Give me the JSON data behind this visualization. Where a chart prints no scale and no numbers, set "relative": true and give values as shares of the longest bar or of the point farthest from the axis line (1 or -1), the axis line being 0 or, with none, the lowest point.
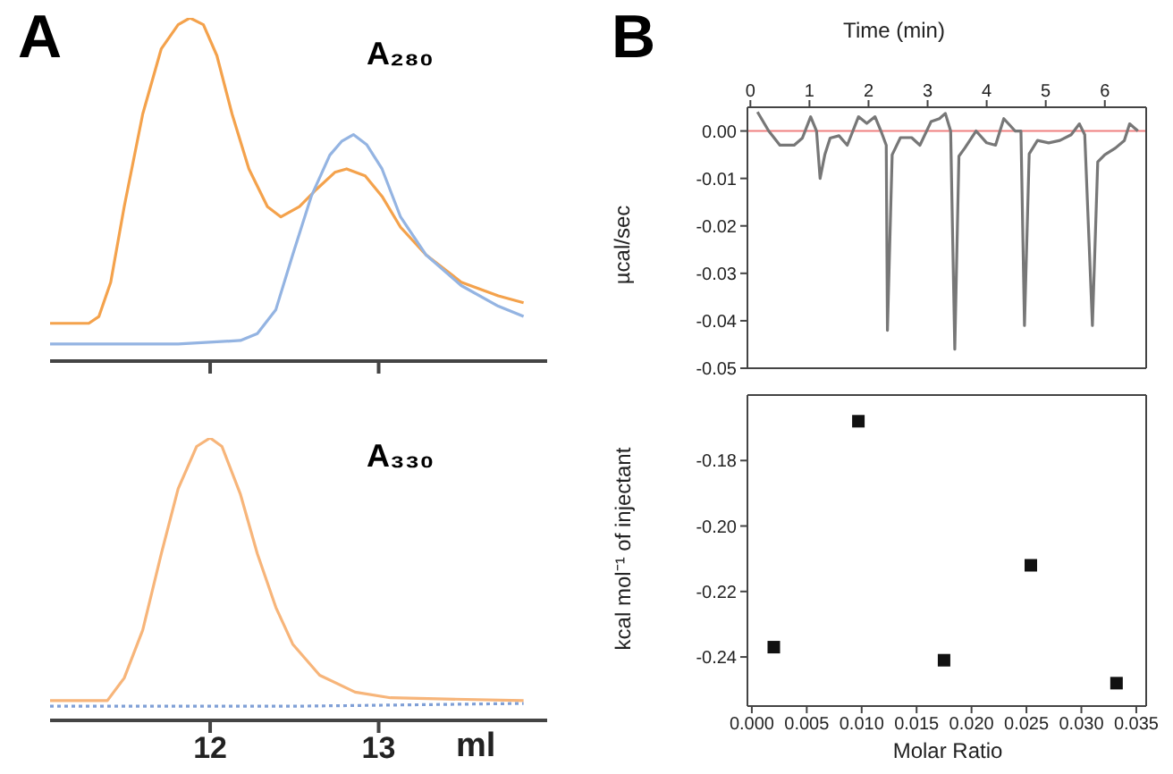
{
  "chart_data": [
    {
      "type": "line",
      "title": "A",
      "annotations": [
        "A₂₈₀"
      ],
      "relative": true,
      "xlim": [
        11.05,
        14.0
      ],
      "xticks": [
        12,
        13
      ],
      "tick_labels": false,
      "series": [
        {
          "color": "#f4a24c",
          "x": [
            11.05,
            11.28,
            11.34,
            11.41,
            11.49,
            11.6,
            11.71,
            11.81,
            11.88,
            11.96,
            12.04,
            12.13,
            12.23,
            12.34,
            12.42,
            12.53,
            12.63,
            12.74,
            12.81,
            12.92,
            13.02,
            13.13,
            13.28,
            13.49,
            13.71,
            13.86
          ],
          "values": [
            0.11,
            0.11,
            0.13,
            0.23,
            0.45,
            0.72,
            0.91,
            0.98,
            1.0,
            0.98,
            0.89,
            0.72,
            0.56,
            0.45,
            0.42,
            0.45,
            0.5,
            0.55,
            0.56,
            0.54,
            0.48,
            0.39,
            0.31,
            0.23,
            0.19,
            0.17
          ]
        },
        {
          "color": "#94b4e2",
          "x": [
            11.05,
            11.81,
            12.18,
            12.28,
            12.39,
            12.49,
            12.6,
            12.71,
            12.78,
            12.85,
            12.93,
            13.02,
            13.13,
            13.28,
            13.49,
            13.71,
            13.86
          ],
          "values": [
            0.05,
            0.05,
            0.06,
            0.08,
            0.15,
            0.31,
            0.48,
            0.6,
            0.64,
            0.66,
            0.63,
            0.56,
            0.42,
            0.31,
            0.22,
            0.16,
            0.13
          ]
        }
      ]
    },
    {
      "type": "line",
      "annotations": [
        "A₃₃₀"
      ],
      "relative": true,
      "xlabel": "ml",
      "xlim": [
        11.05,
        14.0
      ],
      "xticks": [
        12,
        13
      ],
      "tick_labels": "x",
      "series": [
        {
          "color": "#f7b57a",
          "x": [
            11.05,
            11.39,
            11.49,
            11.6,
            11.71,
            11.81,
            11.92,
            12.0,
            12.07,
            12.18,
            12.28,
            12.39,
            12.49,
            12.65,
            12.86,
            13.07,
            13.86
          ],
          "values": [
            0.07,
            0.07,
            0.15,
            0.32,
            0.59,
            0.82,
            0.97,
            1.0,
            0.97,
            0.8,
            0.59,
            0.4,
            0.27,
            0.16,
            0.1,
            0.08,
            0.07
          ]
        },
        {
          "color": "#7f9fd6",
          "line_style": "dotted",
          "x": [
            11.05,
            12.5,
            13.86
          ],
          "values": [
            0.05,
            0.05,
            0.06
          ]
        }
      ]
    },
    {
      "type": "line",
      "title": "B",
      "xlabel": "Time (min)",
      "ylabel": "µcal/sec",
      "xlim": [
        -0.05,
        6.7
      ],
      "xticks": [
        0,
        1,
        2,
        3,
        4,
        5,
        6
      ],
      "ylim": [
        -0.05,
        0.005
      ],
      "yticks": [
        {
          "value": 0,
          "label": "0.00"
        },
        {
          "value": -0.01,
          "label": "-0.01"
        },
        {
          "value": -0.02,
          "label": "-0.02"
        },
        {
          "value": -0.03,
          "label": "-0.03"
        },
        {
          "value": -0.04,
          "label": "-0.04"
        },
        {
          "value": -0.05,
          "label": "-0.05"
        }
      ],
      "ref_lines": [
        {
          "axis": "y",
          "value": 0,
          "color": "#f08080"
        }
      ],
      "series": [
        {
          "color": "#777777",
          "x": [
            0.12,
            0.31,
            0.5,
            0.74,
            0.88,
            1.02,
            1.12,
            1.18,
            1.26,
            1.35,
            1.5,
            1.64,
            1.83,
            1.97,
            2.11,
            2.21,
            2.3,
            2.32,
            2.4,
            2.54,
            2.73,
            2.87,
            3.06,
            3.2,
            3.3,
            3.39,
            3.46,
            3.53,
            3.63,
            3.82,
            4.0,
            4.15,
            4.29,
            4.48,
            4.58,
            4.64,
            4.72,
            4.86,
            5.05,
            5.24,
            5.43,
            5.57,
            5.66,
            5.79,
            5.88,
            6.0,
            6.18,
            6.33,
            6.42,
            6.56
          ],
          "values": [
            0.004,
            0.0,
            -0.003,
            -0.003,
            -0.0015,
            0.003,
            0.0,
            -0.01,
            -0.005,
            -0.0015,
            -0.001,
            -0.003,
            0.003,
            0.0016,
            0.003,
            0.0,
            -0.003,
            -0.042,
            -0.005,
            -0.0014,
            -0.0014,
            -0.003,
            0.002,
            0.0026,
            0.0037,
            0.0,
            -0.046,
            -0.0053,
            -0.0036,
            0.0,
            -0.0025,
            -0.003,
            0.0026,
            0.0,
            0.0,
            -0.041,
            -0.0048,
            -0.002,
            -0.0025,
            -0.002,
            -0.0008,
            0.0015,
            -0.0008,
            -0.041,
            -0.0065,
            -0.005,
            -0.0036,
            -0.002,
            0.0015,
            0.0
          ]
        }
      ]
    },
    {
      "type": "scatter",
      "xlabel": "Molar Ratio",
      "ylabel": "kcal mol⁻¹ of injectant",
      "marker": "square",
      "xlim": [
        -0.0004,
        0.0359
      ],
      "xticks": [
        {
          "value": 0,
          "label": "0.000"
        },
        {
          "value": 0.005,
          "label": "0.005"
        },
        {
          "value": 0.01,
          "label": "0.010"
        },
        {
          "value": 0.015,
          "label": "0.015"
        },
        {
          "value": 0.02,
          "label": "0.020"
        },
        {
          "value": 0.025,
          "label": "0.025"
        },
        {
          "value": 0.03,
          "label": "0.030"
        },
        {
          "value": 0.035,
          "label": "0.035"
        }
      ],
      "ylim": [
        -0.255,
        -0.16
      ],
      "yticks": [
        {
          "value": -0.18,
          "label": "-0.18"
        },
        {
          "value": -0.2,
          "label": "-0.20"
        },
        {
          "value": -0.22,
          "label": "-0.22"
        },
        {
          "value": -0.24,
          "label": "-0.24"
        }
      ],
      "series": [
        {
          "color": "#111111",
          "x": [
            0.002,
            0.0097,
            0.0175,
            0.0254,
            0.0332
          ],
          "values": [
            -0.237,
            -0.168,
            -0.241,
            -0.212,
            -0.248
          ]
        }
      ]
    }
  ]
}
